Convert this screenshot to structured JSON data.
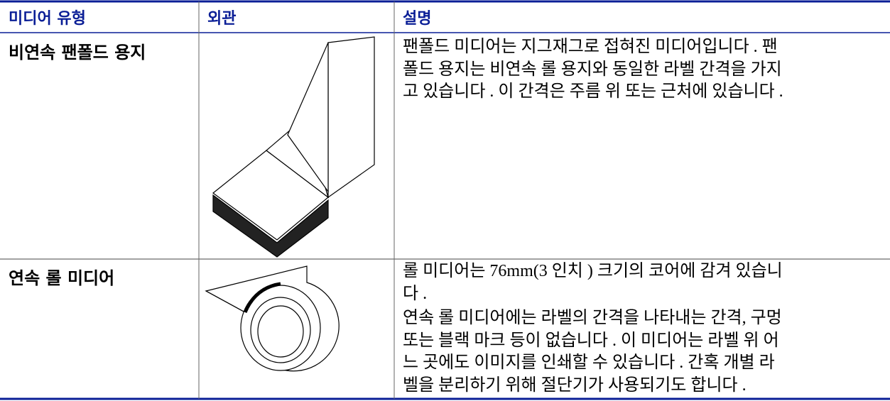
{
  "table": {
    "headers": [
      "미디어 유형",
      "외관",
      "설명"
    ],
    "rows": [
      {
        "type": "비연속 팬폴드 용지",
        "description": [
          [
            "팬폴드 미디어는 지그재그로 접혀진 미디어입니다 . 팬",
            "폴드 용지는 비연속 롤 용지와 동일한 라벨 간격을 가지",
            "고 있습니다 . 이 간격은 주름 위 또는 근처에 있습니다 ."
          ]
        ]
      },
      {
        "type": "연속 롤 미디어",
        "description": [
          [
            "롤 미디어는 76mm(3 인치 ) 크기의 코어에 감겨 있습니",
            "다 ."
          ],
          [
            "연속 롤 미디어에는 라벨의 간격을 나타내는 간격, 구멍",
            "또는 블랙 마크 등이 없습니다 . 이 미디어는 라벨 위 어",
            "느 곳에도 이미지를 인쇄할 수 있습니다 . 간혹 개별 라",
            "벨을 분리하기 위해 절단기가 사용되기도 합니다 ."
          ]
        ]
      }
    ]
  }
}
